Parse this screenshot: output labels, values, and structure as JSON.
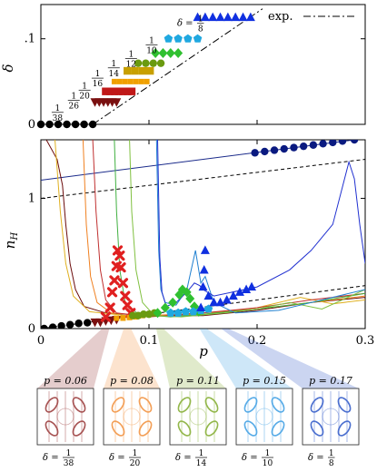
{
  "chart_data": [
    {
      "type": "scatter",
      "panel": "top",
      "ylabel": "δ",
      "ylim": [
        0,
        0.14
      ],
      "xlim": [
        0,
        0.3
      ],
      "yticks": [
        {
          "v": 0,
          "label": "0"
        },
        {
          "v": 0.1,
          "label": ".1"
        }
      ],
      "legend": {
        "label": "exp.",
        "placement": "top-right"
      },
      "exp_line": [
        [
          0.048,
          0.0
        ],
        [
          0.205,
          0.135
        ]
      ],
      "zero_series": {
        "color": "#000000",
        "marker": "circle",
        "x": [
          0.0,
          0.008,
          0.016,
          0.024,
          0.032,
          0.04,
          0.048
        ],
        "y": [
          0,
          0,
          0,
          0,
          0,
          0,
          0
        ]
      },
      "series": [
        {
          "delta_num": "1",
          "delta_den": "38",
          "color": "#7a1010",
          "marker": "triangle-down",
          "y": 0.0263,
          "x": [
            0.05,
            0.054,
            0.058,
            0.062,
            0.066,
            0.07
          ]
        },
        {
          "delta_num": "1",
          "delta_den": "26",
          "color": "#c01818",
          "marker": "square",
          "y": 0.0385,
          "x": [
            0.06,
            0.064,
            0.068,
            0.072,
            0.076,
            0.08,
            0.084
          ]
        },
        {
          "delta_num": "1",
          "delta_den": "20",
          "color": "#f0a000",
          "marker": "square-small",
          "y": 0.05,
          "x": [
            0.068,
            0.073,
            0.078,
            0.083,
            0.088,
            0.093,
            0.098
          ]
        },
        {
          "delta_num": "1",
          "delta_den": "16",
          "color": "#c8a000",
          "marker": "square",
          "y": 0.0625,
          "x": [
            0.08,
            0.087,
            0.094,
            0.101
          ]
        },
        {
          "delta_num": "1",
          "delta_den": "14",
          "color": "#6a9a10",
          "marker": "circle",
          "y": 0.0714,
          "x": [
            0.09,
            0.097,
            0.104,
            0.111
          ]
        },
        {
          "delta_num": "1",
          "delta_den": "12",
          "color": "#30c030",
          "marker": "diamond",
          "y": 0.0833,
          "x": [
            0.106,
            0.113,
            0.12,
            0.127
          ]
        },
        {
          "delta_num": "1",
          "delta_den": "10",
          "color": "#20a8e0",
          "marker": "pentagon",
          "y": 0.1,
          "x": [
            0.118,
            0.127,
            0.136,
            0.145
          ]
        },
        {
          "delta_num": "1",
          "delta_den": "8",
          "color": "#1030e0",
          "marker": "triangle-up",
          "y": 0.125,
          "x": [
            0.145,
            0.152,
            0.159,
            0.166,
            0.173,
            0.18,
            0.187,
            0.194
          ]
        }
      ],
      "labels": [
        {
          "prefix": "",
          "num": "1",
          "den": "38",
          "x": 0.01,
          "y": 0.014
        },
        {
          "prefix": "",
          "num": "1",
          "den": "26",
          "x": 0.025,
          "y": 0.028
        },
        {
          "prefix": "",
          "num": "1",
          "den": "20",
          "x": 0.035,
          "y": 0.04
        },
        {
          "prefix": "",
          "num": "1",
          "den": "16",
          "x": 0.047,
          "y": 0.054
        },
        {
          "prefix": "",
          "num": "1",
          "den": "14",
          "x": 0.062,
          "y": 0.066
        },
        {
          "prefix": "",
          "num": "1",
          "den": "12",
          "x": 0.078,
          "y": 0.077
        },
        {
          "prefix": "",
          "num": "1",
          "den": "10",
          "x": 0.097,
          "y": 0.093
        },
        {
          "prefix": "δ = ",
          "num": "1",
          "den": "8",
          "x": 0.126,
          "y": 0.118
        }
      ]
    },
    {
      "type": "line",
      "panel": "bottom",
      "xlabel": "p",
      "ylabel": "n_H",
      "xlim": [
        0,
        0.3
      ],
      "ylim": [
        0,
        1.45
      ],
      "xticks": [
        {
          "v": 0,
          "label": "0"
        },
        {
          "v": 0.1,
          "label": "0.1"
        },
        {
          "v": 0.2,
          "label": "0.2"
        },
        {
          "v": 0.3,
          "label": "0.3"
        }
      ],
      "yticks": [
        {
          "v": 0,
          "label": "0"
        },
        {
          "v": 1,
          "label": "1"
        }
      ],
      "reference_lines": [
        {
          "style": "solid",
          "color": "#1a2a8a",
          "points": [
            [
              0,
              1.14
            ],
            [
              0.3,
              1.46
            ]
          ]
        },
        {
          "style": "dashed",
          "color": "#000000",
          "points": [
            [
              0,
              1.0
            ],
            [
              0.3,
              1.3
            ]
          ]
        },
        {
          "style": "dashed",
          "color": "#000000",
          "points": [
            [
              0,
              0.0
            ],
            [
              0.3,
              0.33
            ]
          ]
        }
      ],
      "curves": [
        {
          "color": "#6a0a0a",
          "points": [
            [
              0.005,
              1.45
            ],
            [
              0.015,
              1.3
            ],
            [
              0.02,
              1.1
            ],
            [
              0.023,
              0.8
            ],
            [
              0.027,
              0.5
            ],
            [
              0.032,
              0.3
            ],
            [
              0.04,
              0.17
            ],
            [
              0.06,
              0.12
            ],
            [
              0.1,
              0.1
            ],
            [
              0.15,
              0.1
            ],
            [
              0.2,
              0.14
            ],
            [
              0.25,
              0.2
            ],
            [
              0.3,
              0.24
            ]
          ]
        },
        {
          "color": "#e0b020",
          "points": [
            [
              0.013,
              1.45
            ],
            [
              0.018,
              0.9
            ],
            [
              0.023,
              0.5
            ],
            [
              0.03,
              0.25
            ],
            [
              0.045,
              0.13
            ],
            [
              0.08,
              0.1
            ],
            [
              0.15,
              0.11
            ],
            [
              0.2,
              0.16
            ],
            [
              0.24,
              0.24
            ],
            [
              0.27,
              0.19
            ],
            [
              0.3,
              0.22
            ]
          ]
        },
        {
          "color": "#f08020",
          "points": [
            [
              0.039,
              1.45
            ],
            [
              0.042,
              0.8
            ],
            [
              0.046,
              0.4
            ],
            [
              0.052,
              0.2
            ],
            [
              0.065,
              0.12
            ],
            [
              0.1,
              0.1
            ],
            [
              0.15,
              0.12
            ],
            [
              0.2,
              0.15
            ],
            [
              0.25,
              0.2
            ],
            [
              0.3,
              0.25
            ]
          ]
        },
        {
          "color": "#c03030",
          "points": [
            [
              0.048,
              1.45
            ],
            [
              0.051,
              0.9
            ],
            [
              0.055,
              0.45
            ],
            [
              0.06,
              0.22
            ],
            [
              0.07,
              0.12
            ],
            [
              0.1,
              0.09
            ],
            [
              0.15,
              0.12
            ],
            [
              0.2,
              0.16
            ],
            [
              0.25,
              0.22
            ],
            [
              0.3,
              0.27
            ]
          ]
        },
        {
          "color": "#40b040",
          "points": [
            [
              0.068,
              1.45
            ],
            [
              0.07,
              0.9
            ],
            [
              0.073,
              0.45
            ],
            [
              0.078,
              0.2
            ],
            [
              0.09,
              0.11
            ],
            [
              0.12,
              0.09
            ],
            [
              0.15,
              0.11
            ],
            [
              0.2,
              0.15
            ],
            [
              0.25,
              0.2
            ],
            [
              0.3,
              0.27
            ]
          ]
        },
        {
          "color": "#80c040",
          "points": [
            [
              0.082,
              1.45
            ],
            [
              0.084,
              0.9
            ],
            [
              0.088,
              0.45
            ],
            [
              0.094,
              0.2
            ],
            [
              0.105,
              0.1
            ],
            [
              0.13,
              0.09
            ],
            [
              0.17,
              0.12
            ],
            [
              0.2,
              0.15
            ],
            [
              0.23,
              0.2
            ],
            [
              0.26,
              0.15
            ],
            [
              0.3,
              0.3
            ]
          ]
        },
        {
          "color": "#2080d0",
          "points": [
            [
              0.107,
              1.45
            ],
            [
              0.109,
              0.6
            ],
            [
              0.111,
              0.3
            ],
            [
              0.115,
              0.2
            ],
            [
              0.125,
              0.18
            ],
            [
              0.135,
              0.3
            ],
            [
              0.143,
              0.6
            ],
            [
              0.148,
              0.35
            ],
            [
              0.152,
              0.4
            ],
            [
              0.16,
              0.2
            ],
            [
              0.18,
              0.12
            ],
            [
              0.22,
              0.14
            ],
            [
              0.25,
              0.2
            ],
            [
              0.3,
              0.3
            ]
          ]
        },
        {
          "color": "#2030d0",
          "points": [
            [
              0.108,
              1.45
            ],
            [
              0.11,
              0.55
            ],
            [
              0.112,
              0.28
            ],
            [
              0.116,
              0.17
            ],
            [
              0.125,
              0.2
            ],
            [
              0.135,
              0.28
            ],
            [
              0.142,
              0.35
            ],
            [
              0.147,
              0.33
            ],
            [
              0.15,
              0.3
            ],
            [
              0.16,
              0.25
            ],
            [
              0.2,
              0.32
            ],
            [
              0.23,
              0.45
            ],
            [
              0.25,
              0.6
            ],
            [
              0.27,
              0.8
            ],
            [
              0.285,
              1.28
            ],
            [
              0.29,
              1.15
            ],
            [
              0.295,
              0.8
            ],
            [
              0.3,
              0.5
            ]
          ]
        }
      ],
      "marker_series": [
        {
          "color": "#000000",
          "marker": "circle",
          "points": [
            [
              0.003,
              0.0
            ],
            [
              0.011,
              0.01
            ],
            [
              0.019,
              0.02
            ],
            [
              0.027,
              0.03
            ],
            [
              0.035,
              0.04
            ],
            [
              0.043,
              0.045
            ]
          ]
        },
        {
          "color": "#7a1010",
          "marker": "triangle-down",
          "points": [
            [
              0.05,
              0.05
            ],
            [
              0.055,
              0.05
            ],
            [
              0.06,
              0.06
            ],
            [
              0.065,
              0.065
            ],
            [
              0.07,
              0.07
            ]
          ]
        },
        {
          "color": "#e02020",
          "marker": "cross",
          "points": [
            [
              0.06,
              0.09
            ],
            [
              0.064,
              0.16
            ],
            [
              0.066,
              0.28
            ],
            [
              0.068,
              0.37
            ],
            [
              0.07,
              0.48
            ],
            [
              0.071,
              0.6
            ],
            [
              0.073,
              0.56
            ],
            [
              0.074,
              0.47
            ],
            [
              0.076,
              0.35
            ],
            [
              0.078,
              0.25
            ],
            [
              0.08,
              0.18
            ],
            [
              0.083,
              0.12
            ]
          ]
        },
        {
          "color": "#f0a000",
          "marker": "square-small",
          "points": [
            [
              0.07,
              0.08
            ],
            [
              0.076,
              0.08
            ],
            [
              0.082,
              0.085
            ],
            [
              0.088,
              0.09
            ],
            [
              0.094,
              0.1
            ]
          ]
        },
        {
          "color": "#6a9a10",
          "marker": "circle",
          "points": [
            [
              0.085,
              0.1
            ],
            [
              0.09,
              0.1
            ],
            [
              0.095,
              0.11
            ],
            [
              0.1,
              0.11
            ],
            [
              0.105,
              0.12
            ]
          ]
        },
        {
          "color": "#30c030",
          "marker": "diamond",
          "points": [
            [
              0.108,
              0.12
            ],
            [
              0.115,
              0.16
            ],
            [
              0.122,
              0.2
            ],
            [
              0.128,
              0.26
            ],
            [
              0.131,
              0.3
            ],
            [
              0.135,
              0.28
            ],
            [
              0.138,
              0.23
            ],
            [
              0.142,
              0.17
            ],
            [
              0.146,
              0.13
            ]
          ]
        },
        {
          "color": "#20a8e0",
          "marker": "pentagon",
          "points": [
            [
              0.12,
              0.12
            ],
            [
              0.127,
              0.12
            ],
            [
              0.134,
              0.13
            ],
            [
              0.141,
              0.13
            ],
            [
              0.148,
              0.14
            ],
            [
              0.155,
              0.15
            ]
          ]
        },
        {
          "color": "#1030e0",
          "marker": "triangle-up",
          "points": [
            [
              0.148,
              0.16
            ],
            [
              0.15,
              0.32
            ],
            [
              0.151,
              0.45
            ],
            [
              0.152,
              0.6
            ],
            [
              0.155,
              0.25
            ],
            [
              0.16,
              0.2
            ],
            [
              0.166,
              0.2
            ],
            [
              0.172,
              0.22
            ],
            [
              0.178,
              0.25
            ],
            [
              0.184,
              0.28
            ],
            [
              0.19,
              0.3
            ],
            [
              0.195,
              0.32
            ]
          ]
        },
        {
          "color": "#0a1a80",
          "marker": "circle",
          "points": [
            [
              0.198,
              1.35
            ],
            [
              0.207,
              1.36
            ],
            [
              0.216,
              1.37
            ],
            [
              0.225,
              1.38
            ],
            [
              0.234,
              1.39
            ],
            [
              0.243,
              1.4
            ],
            [
              0.252,
              1.41
            ],
            [
              0.261,
              1.42
            ],
            [
              0.27,
              1.43
            ],
            [
              0.279,
              1.44
            ],
            [
              0.29,
              1.45
            ]
          ]
        }
      ]
    }
  ],
  "thumbnails": [
    {
      "title": "p = 0.06",
      "delta_num": "1",
      "delta_den": "38",
      "color": "#8a1a1a",
      "source_p": 0.06
    },
    {
      "title": "p = 0.08",
      "delta_num": "1",
      "delta_den": "20",
      "color": "#f08020",
      "source_p": 0.08
    },
    {
      "title": "p = 0.11",
      "delta_num": "1",
      "delta_den": "14",
      "color": "#70a010",
      "source_p": 0.11
    },
    {
      "title": "p = 0.15",
      "delta_num": "1",
      "delta_den": "10",
      "color": "#2090e0",
      "source_p": 0.15
    },
    {
      "title": "p = 0.17",
      "delta_num": "1",
      "delta_den": "8",
      "color": "#1040c0",
      "source_p": 0.17
    }
  ]
}
